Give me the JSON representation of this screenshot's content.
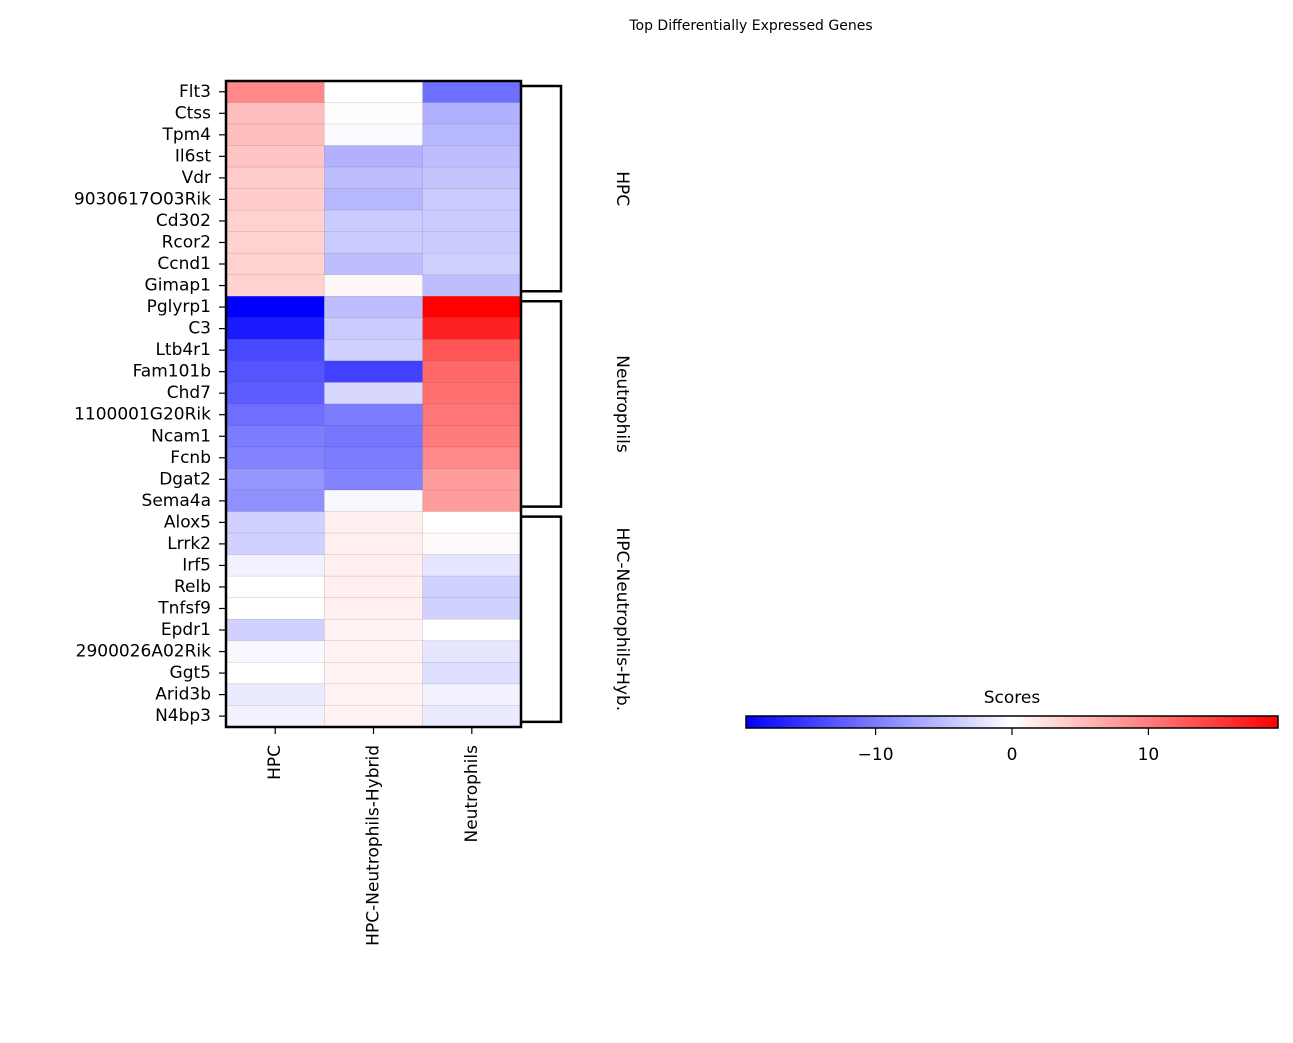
{
  "chart_data": {
    "type": "heatmap",
    "title": "Top Differentially Expressed Genes",
    "columns": [
      "HPC",
      "HPC-Neutrophils-Hybrid",
      "Neutrophils"
    ],
    "rows": [
      "Flt3",
      "Ctss",
      "Tpm4",
      "Il6st",
      "Vdr",
      "9030617O03Rik",
      "Cd302",
      "Rcor2",
      "Ccnd1",
      "Gimap1",
      "Pglyrp1",
      "C3",
      "Ltb4r1",
      "Fam101b",
      "Chd7",
      "1100001G20Rik",
      "Ncam1",
      "Fcnb",
      "Dgat2",
      "Sema4a",
      "Alox5",
      "Lrrk2",
      "Irf5",
      "Relb",
      "Tnfsf9",
      "Epdr1",
      "2900026A02Rik",
      "Ggt5",
      "Arid3b",
      "N4bp3"
    ],
    "values": [
      [
        9,
        0,
        -11
      ],
      [
        5,
        0.2,
        -6
      ],
      [
        5,
        -0.3,
        -5.5
      ],
      [
        4.5,
        -6,
        -5
      ],
      [
        4,
        -5,
        -4.5
      ],
      [
        4,
        -5.5,
        -4
      ],
      [
        3.5,
        -4,
        -4
      ],
      [
        3.5,
        -4,
        -4
      ],
      [
        3.5,
        -5,
        -3.5
      ],
      [
        3.5,
        0.5,
        -5
      ],
      [
        -19.5,
        -5,
        19.5
      ],
      [
        -17.5,
        -4,
        17
      ],
      [
        -14,
        -3.5,
        13
      ],
      [
        -13,
        -14.5,
        11.5
      ],
      [
        -12.5,
        -3,
        11
      ],
      [
        -11,
        -10,
        10.5
      ],
      [
        -10,
        -10.5,
        10
      ],
      [
        -9.5,
        -10,
        9
      ],
      [
        -8,
        -9.5,
        7.5
      ],
      [
        -8.5,
        -0.5,
        7.5
      ],
      [
        -3.5,
        1.2,
        0
      ],
      [
        -3.5,
        1.2,
        0.4
      ],
      [
        -1,
        1.2,
        -2
      ],
      [
        0,
        1.2,
        -3.5
      ],
      [
        0,
        1.2,
        -3.5
      ],
      [
        -3.5,
        1.0,
        0
      ],
      [
        -0.5,
        1.0,
        -2
      ],
      [
        0,
        1.0,
        -2.5
      ],
      [
        -1.5,
        1.0,
        -1
      ],
      [
        -1,
        1.0,
        -1.5
      ]
    ],
    "groups": [
      {
        "label": "HPC",
        "start": 0,
        "end": 9
      },
      {
        "label": "Neutrophils",
        "start": 10,
        "end": 19
      },
      {
        "label": "HPC-Neutrophils-Hyb.",
        "start": 20,
        "end": 29
      }
    ],
    "colorbar": {
      "title": "Scores",
      "range": [
        -19.5,
        19.5
      ],
      "ticks": [
        -10,
        0,
        10
      ],
      "tick_labels": [
        "−10",
        "0",
        "10"
      ],
      "colormap": "bwr"
    },
    "colors": {
      "low": "#0000ff",
      "mid": "#ffffff",
      "high": "#ff0000"
    }
  }
}
